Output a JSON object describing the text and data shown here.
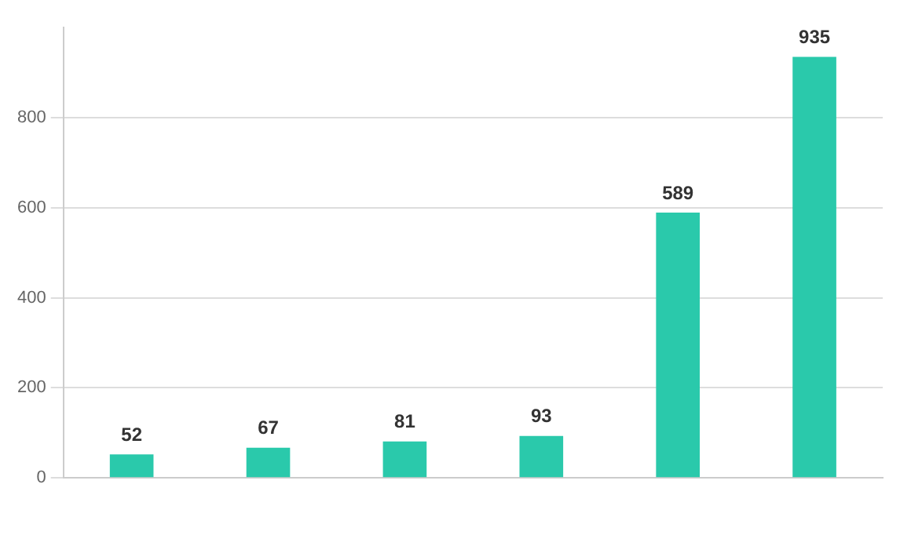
{
  "chart_data": {
    "type": "bar",
    "categories": [
      null,
      null,
      null,
      null,
      null,
      null
    ],
    "values": [
      52,
      67,
      81,
      93,
      589,
      935
    ],
    "color": "#2ac9ab",
    "ylim": [
      0,
      1000
    ],
    "yticks": [
      0,
      200,
      400,
      600,
      800
    ],
    "grid": "y",
    "data_labels": true
  }
}
